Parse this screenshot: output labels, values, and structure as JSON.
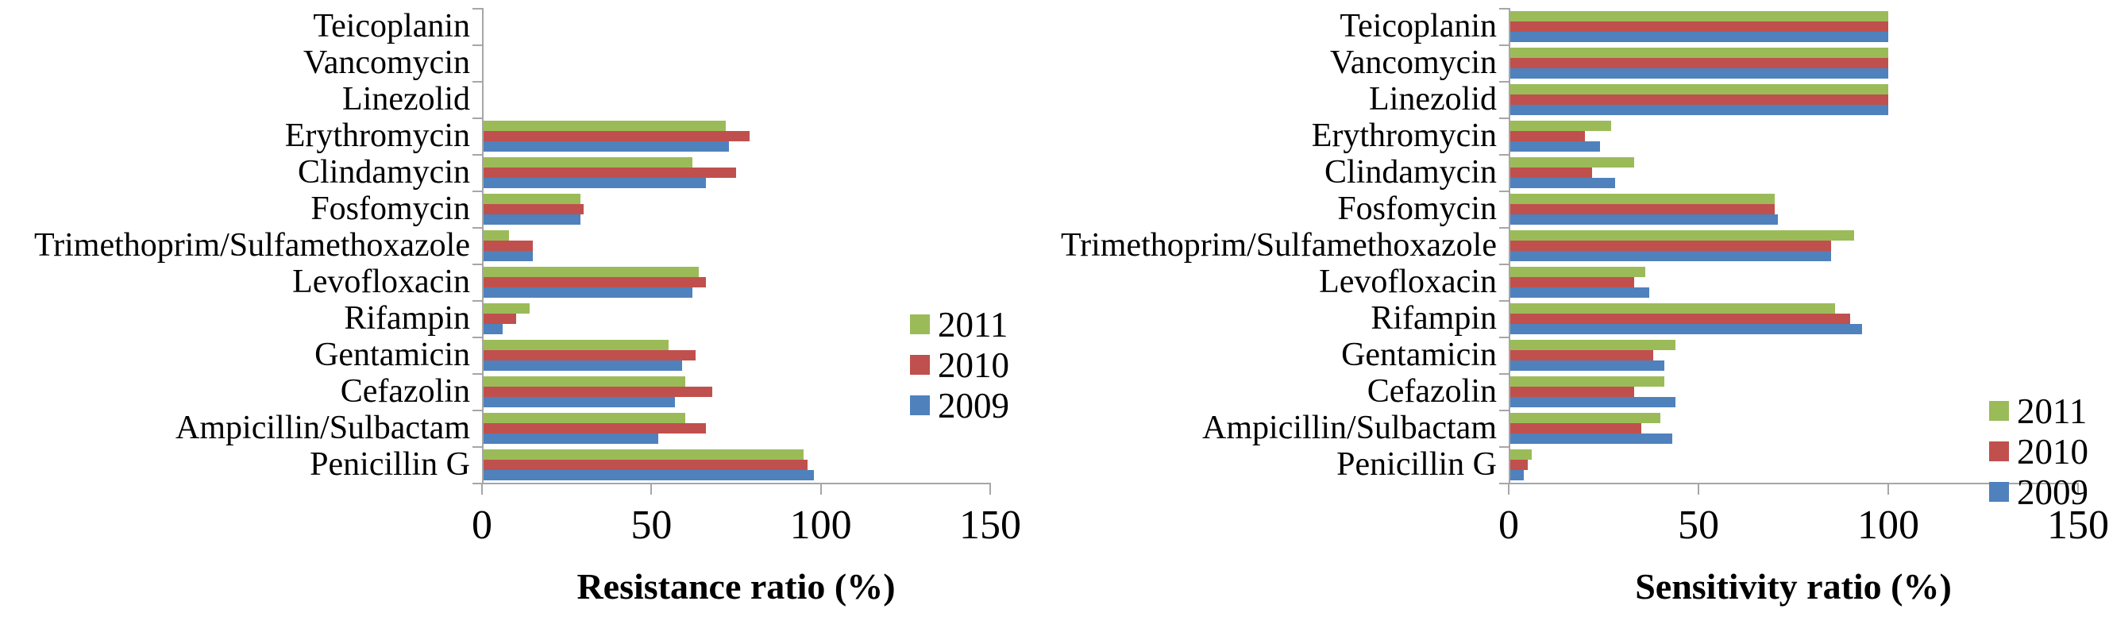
{
  "figure": {
    "background": "#ffffff"
  },
  "colors": {
    "series_2011": "#9BBB59",
    "series_2010": "#C0504D",
    "series_2009": "#4F81BD",
    "axis_line": "#a6a6a6",
    "text": "#000000"
  },
  "chart_data": [
    {
      "type": "bar",
      "orientation": "horizontal",
      "xlabel": "Resistance ratio (%)",
      "xlim": [
        0,
        150
      ],
      "xticks": [
        0,
        50,
        100,
        150
      ],
      "grid": false,
      "legend_position": "right-middle",
      "categories": [
        "Teicoplanin",
        "Vancomycin",
        "Linezolid",
        "Erythromycin",
        "Clindamycin",
        "Fosfomycin",
        "Trimethoprim/Sulfamethoxazole",
        "Levofloxacin",
        "Rifampin",
        "Gentamicin",
        "Cefazolin",
        "Ampicillin/Sulbactam",
        "Penicillin G"
      ],
      "series": [
        {
          "name": "2011",
          "color": "#9BBB59",
          "values": [
            0,
            0,
            0,
            72,
            62,
            29,
            8,
            64,
            14,
            55,
            60,
            60,
            95
          ]
        },
        {
          "name": "2010",
          "color": "#C0504D",
          "values": [
            0,
            0,
            0,
            79,
            75,
            30,
            15,
            66,
            10,
            63,
            68,
            66,
            96
          ]
        },
        {
          "name": "2009",
          "color": "#4F81BD",
          "values": [
            0,
            0,
            0,
            73,
            66,
            29,
            15,
            62,
            6,
            59,
            57,
            52,
            98
          ]
        }
      ]
    },
    {
      "type": "bar",
      "orientation": "horizontal",
      "xlabel": "Sensitivity ratio (%)",
      "xlim": [
        0,
        150
      ],
      "xticks": [
        0,
        50,
        100,
        150
      ],
      "grid": false,
      "legend_position": "right-lower",
      "categories": [
        "Teicoplanin",
        "Vancomycin",
        "Linezolid",
        "Erythromycin",
        "Clindamycin",
        "Fosfomycin",
        "Trimethoprim/Sulfamethoxazole",
        "Levofloxacin",
        "Rifampin",
        "Gentamicin",
        "Cefazolin",
        "Ampicillin/Sulbactam",
        "Penicillin G"
      ],
      "series": [
        {
          "name": "2011",
          "color": "#9BBB59",
          "values": [
            100,
            100,
            100,
            27,
            33,
            70,
            91,
            36,
            86,
            44,
            41,
            40,
            6
          ]
        },
        {
          "name": "2010",
          "color": "#C0504D",
          "values": [
            100,
            100,
            100,
            20,
            22,
            70,
            85,
            33,
            90,
            38,
            33,
            35,
            5
          ]
        },
        {
          "name": "2009",
          "color": "#4F81BD",
          "values": [
            100,
            100,
            100,
            24,
            28,
            71,
            85,
            37,
            93,
            41,
            44,
            43,
            4
          ]
        }
      ]
    }
  ]
}
